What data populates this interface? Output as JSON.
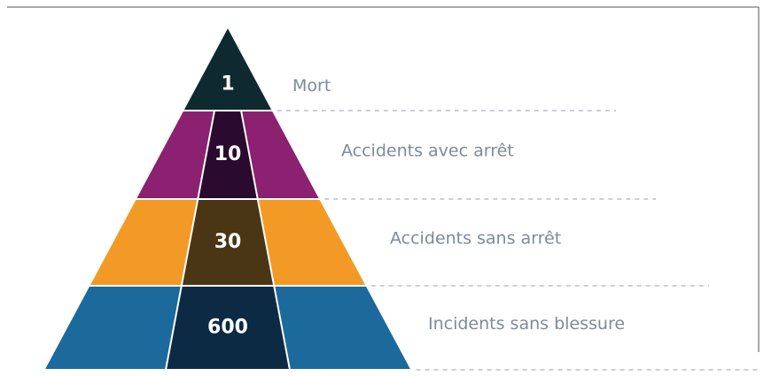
{
  "levels": [
    {
      "number": "1",
      "label": "Mort"
    },
    {
      "number": "10",
      "label": "Accidents avec arrêt"
    },
    {
      "number": "30",
      "label": "Accidents sans arrêt"
    },
    {
      "number": "600",
      "label": "Incidents sans blessure"
    }
  ]
}
